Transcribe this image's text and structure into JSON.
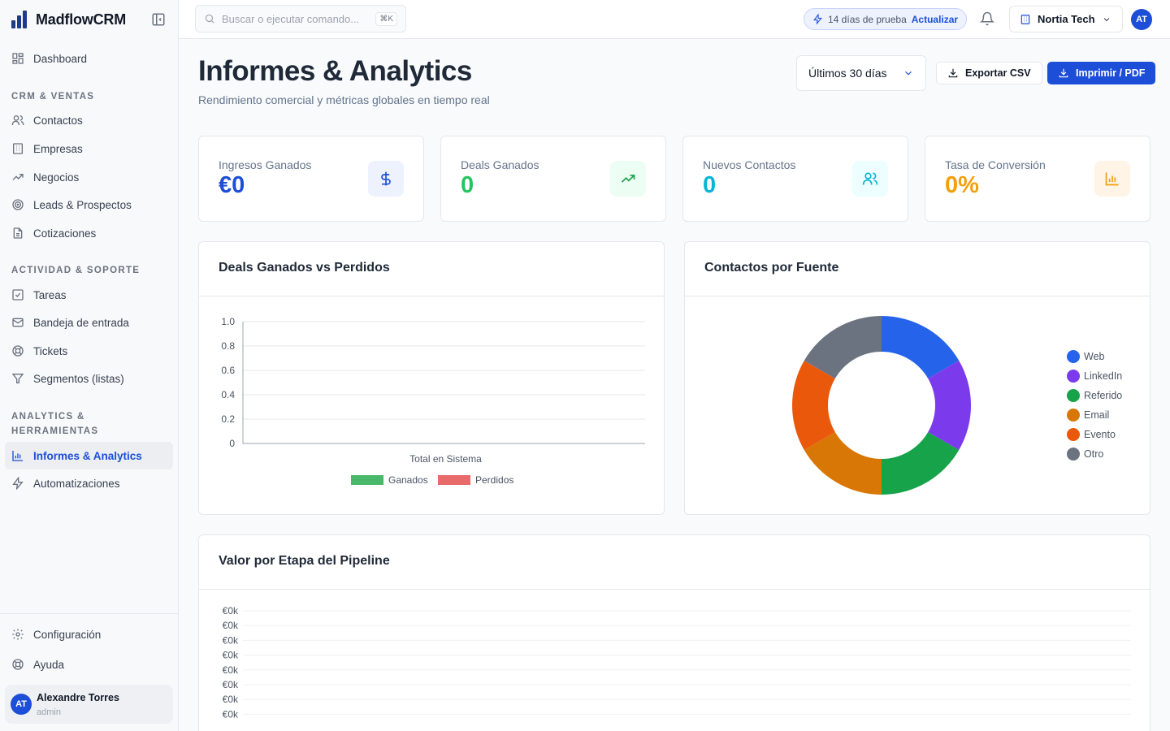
{
  "app": {
    "name": "MadflowCRM"
  },
  "sidebar": {
    "top_item": "Dashboard",
    "sections": [
      {
        "title": "CRM & Ventas",
        "items": [
          "Contactos",
          "Empresas",
          "Negocios",
          "Leads & Prospectos",
          "Cotizaciones"
        ]
      },
      {
        "title": "Actividad & Soporte",
        "items": [
          "Tareas",
          "Bandeja de entrada",
          "Tickets",
          "Segmentos (listas)"
        ]
      },
      {
        "title": "Analytics & Herramientas",
        "items": [
          "Informes & Analytics",
          "Automatizaciones"
        ]
      }
    ],
    "active_item": "Informes & Analytics",
    "bottom_items": [
      "Configuración",
      "Ayuda"
    ],
    "user": {
      "initials": "AT",
      "name": "Alexandre Torres",
      "role": "admin"
    }
  },
  "topbar": {
    "search_placeholder": "Buscar o ejecutar comando...",
    "search_shortcut": "⌘K",
    "trial_text": "14 días de prueba",
    "trial_action": "Actualizar",
    "org_name": "Nortia Tech",
    "avatar_initials": "AT"
  },
  "header": {
    "title": "Informes & Analytics",
    "subtitle": "Rendimiento comercial y métricas globales en tiempo real",
    "range": "Últimos 30 días",
    "export_label": "Exportar CSV",
    "print_label": "Imprimir / PDF"
  },
  "kpis": [
    {
      "label": "Ingresos Ganados",
      "value": "€0",
      "color": "#1d4ed8",
      "icon": "dollar-icon",
      "bg": "#eef2ff"
    },
    {
      "label": "Deals Ganados",
      "value": "0",
      "color": "#22c55e",
      "icon": "trending-up-icon",
      "bg": "#ecfdf3"
    },
    {
      "label": "Nuevos Contactos",
      "value": "0",
      "color": "#06b6d4",
      "icon": "users-icon",
      "bg": "#ecfeff"
    },
    {
      "label": "Tasa de Conversión",
      "value": "0%",
      "color": "#f59e0b",
      "icon": "bar-chart-icon",
      "bg": "#fff4e6"
    }
  ],
  "cards": {
    "deals_title": "Deals Ganados vs Perdidos",
    "sources_title": "Contactos por Fuente",
    "pipeline_title": "Valor por Etapa del Pipeline"
  },
  "chart_data": [
    {
      "type": "bar",
      "title": "Deals Ganados vs Perdidos",
      "categories": [
        "Total en Sistema"
      ],
      "series": [
        {
          "name": "Ganados",
          "values": [
            0
          ],
          "color": "#4ab86a"
        },
        {
          "name": "Perdidos",
          "values": [
            0
          ],
          "color": "#e96a6a"
        }
      ],
      "ylim": [
        0,
        1
      ],
      "yticks": [
        "0",
        "0.2",
        "0.4",
        "0.6",
        "0.8",
        "1.0"
      ],
      "legend": "bottom"
    },
    {
      "type": "pie",
      "title": "Contactos por Fuente",
      "labels": [
        "Web",
        "LinkedIn",
        "Referido",
        "Email",
        "Evento",
        "Otro"
      ],
      "values": [
        1,
        1,
        1,
        1,
        1,
        1
      ],
      "colors": [
        "#2563eb",
        "#7c3aed",
        "#16a34a",
        "#d97706",
        "#ea580c",
        "#6b7280"
      ],
      "legend": "right"
    },
    {
      "type": "bar",
      "title": "Valor por Etapa del Pipeline",
      "yticks": [
        "€0k",
        "€0k",
        "€0k",
        "€0k",
        "€0k",
        "€0k",
        "€0k",
        "€0k"
      ]
    }
  ]
}
